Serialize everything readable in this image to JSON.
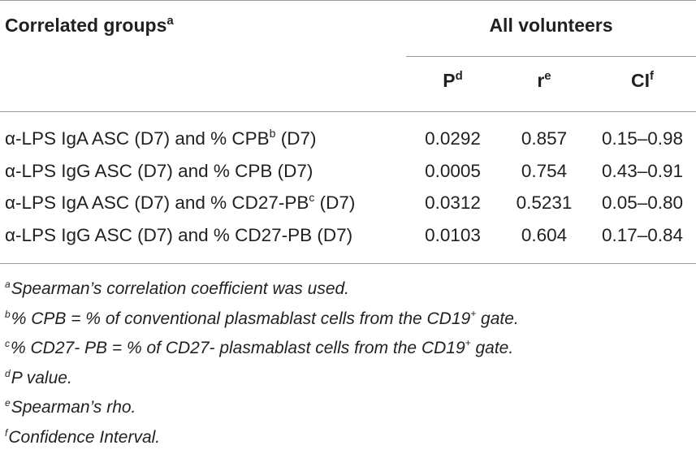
{
  "table": {
    "header": {
      "groups_label": "Correlated groups",
      "groups_mark": "a",
      "group_span_label": "All volunteers",
      "columns": [
        {
          "label": "P",
          "mark": "d"
        },
        {
          "label": "r",
          "mark": "e"
        },
        {
          "label": "CI",
          "mark": "f"
        }
      ]
    },
    "rows": [
      {
        "label_before": "α-LPS IgA ASC (D7) and % CPB",
        "label_mark": "b",
        "label_after": " (D7)",
        "p": "0.0292",
        "r": "0.857",
        "ci": "0.15–0.98"
      },
      {
        "label_before": "α-LPS IgG ASC (D7) and % CPB (D7)",
        "label_mark": "",
        "label_after": "",
        "p": "0.0005",
        "r": "0.754",
        "ci": "0.43–0.91"
      },
      {
        "label_before": "α-LPS IgA ASC (D7) and % CD27-PB",
        "label_mark": "c",
        "label_after": " (D7)",
        "p": "0.0312",
        "r": "0.5231",
        "ci": "0.05–0.80"
      },
      {
        "label_before": "α-LPS IgG ASC (D7) and % CD27-PB (D7)",
        "label_mark": "",
        "label_after": "",
        "p": "0.0103",
        "r": "0.604",
        "ci": "0.17–0.84"
      }
    ]
  },
  "footnotes": [
    {
      "mark": "a",
      "text_before": "Spearman’s correlation coefficient was used.",
      "sup": "",
      "text_after": ""
    },
    {
      "mark": "b",
      "text_before": "% CPB = % of conventional plasmablast cells from the CD19",
      "sup": "+",
      "text_after": " gate."
    },
    {
      "mark": "c",
      "text_before": "% CD27- PB = % of CD27- plasmablast cells from the CD19",
      "sup": "+",
      "text_after": " gate."
    },
    {
      "mark": "d",
      "text_before": "P value.",
      "sup": "",
      "text_after": ""
    },
    {
      "mark": "e",
      "text_before": "Spearman’s rho.",
      "sup": "",
      "text_after": ""
    },
    {
      "mark": "f",
      "text_before": "Confidence Interval.",
      "sup": "",
      "text_after": ""
    }
  ]
}
